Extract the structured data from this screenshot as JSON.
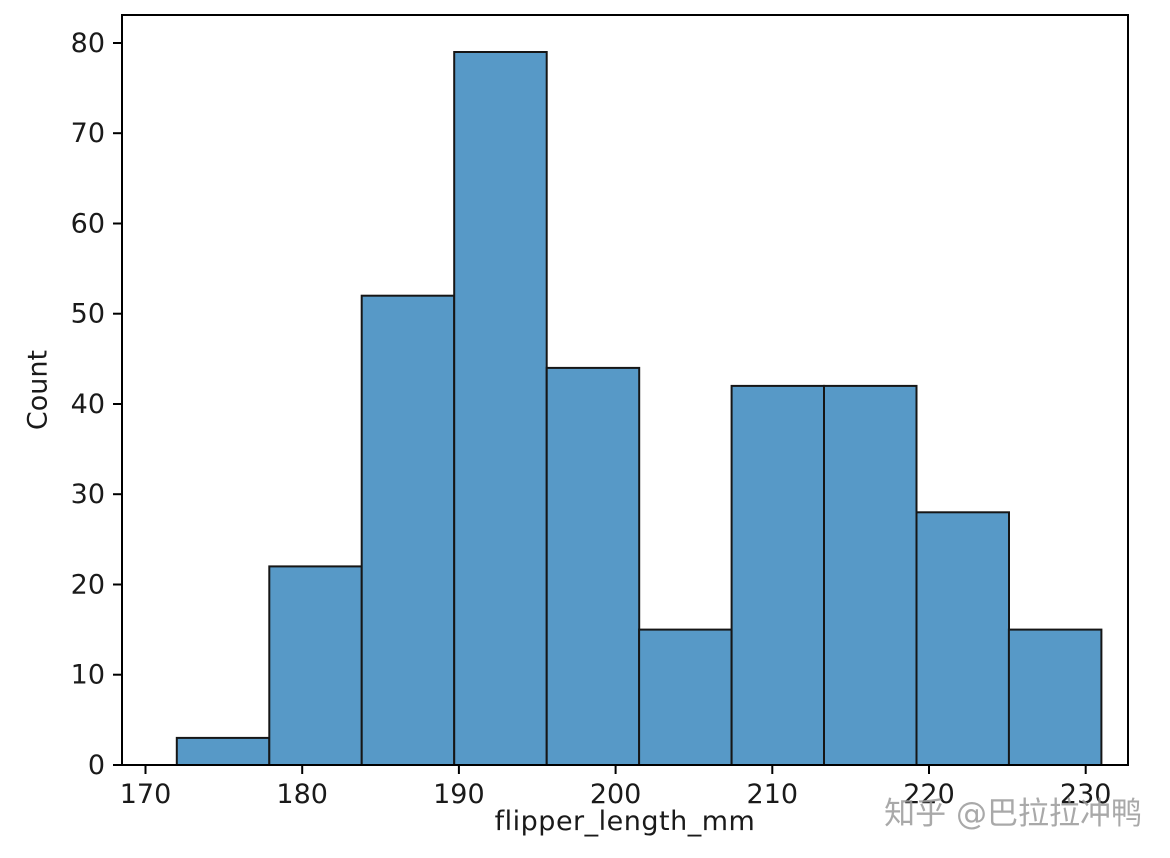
{
  "chart_data": {
    "type": "bar",
    "subtype": "histogram",
    "title": "",
    "xlabel": "flipper_length_mm",
    "ylabel": "Count",
    "bin_edges": [
      172.0,
      177.9,
      183.8,
      189.7,
      195.6,
      201.5,
      207.4,
      213.3,
      219.2,
      225.1,
      231.0
    ],
    "counts": [
      3,
      22,
      52,
      79,
      44,
      15,
      42,
      42,
      28,
      15
    ],
    "xticks": [
      170,
      180,
      190,
      200,
      210,
      220,
      230
    ],
    "yticks": [
      0,
      10,
      20,
      30,
      40,
      50,
      60,
      70,
      80
    ],
    "xlim": [
      168.5,
      232.7
    ],
    "ylim": [
      0,
      83.1
    ],
    "grid": false,
    "legend": null,
    "bar_fill": "#5799C7",
    "bar_edge": "#161616",
    "spine_color": "#000000",
    "tick_color": "#000000",
    "tick_label_color": "#1a1a1a"
  },
  "watermark": {
    "text": "知乎 @巴拉拉冲鸭",
    "color": "#9b9b9b"
  }
}
